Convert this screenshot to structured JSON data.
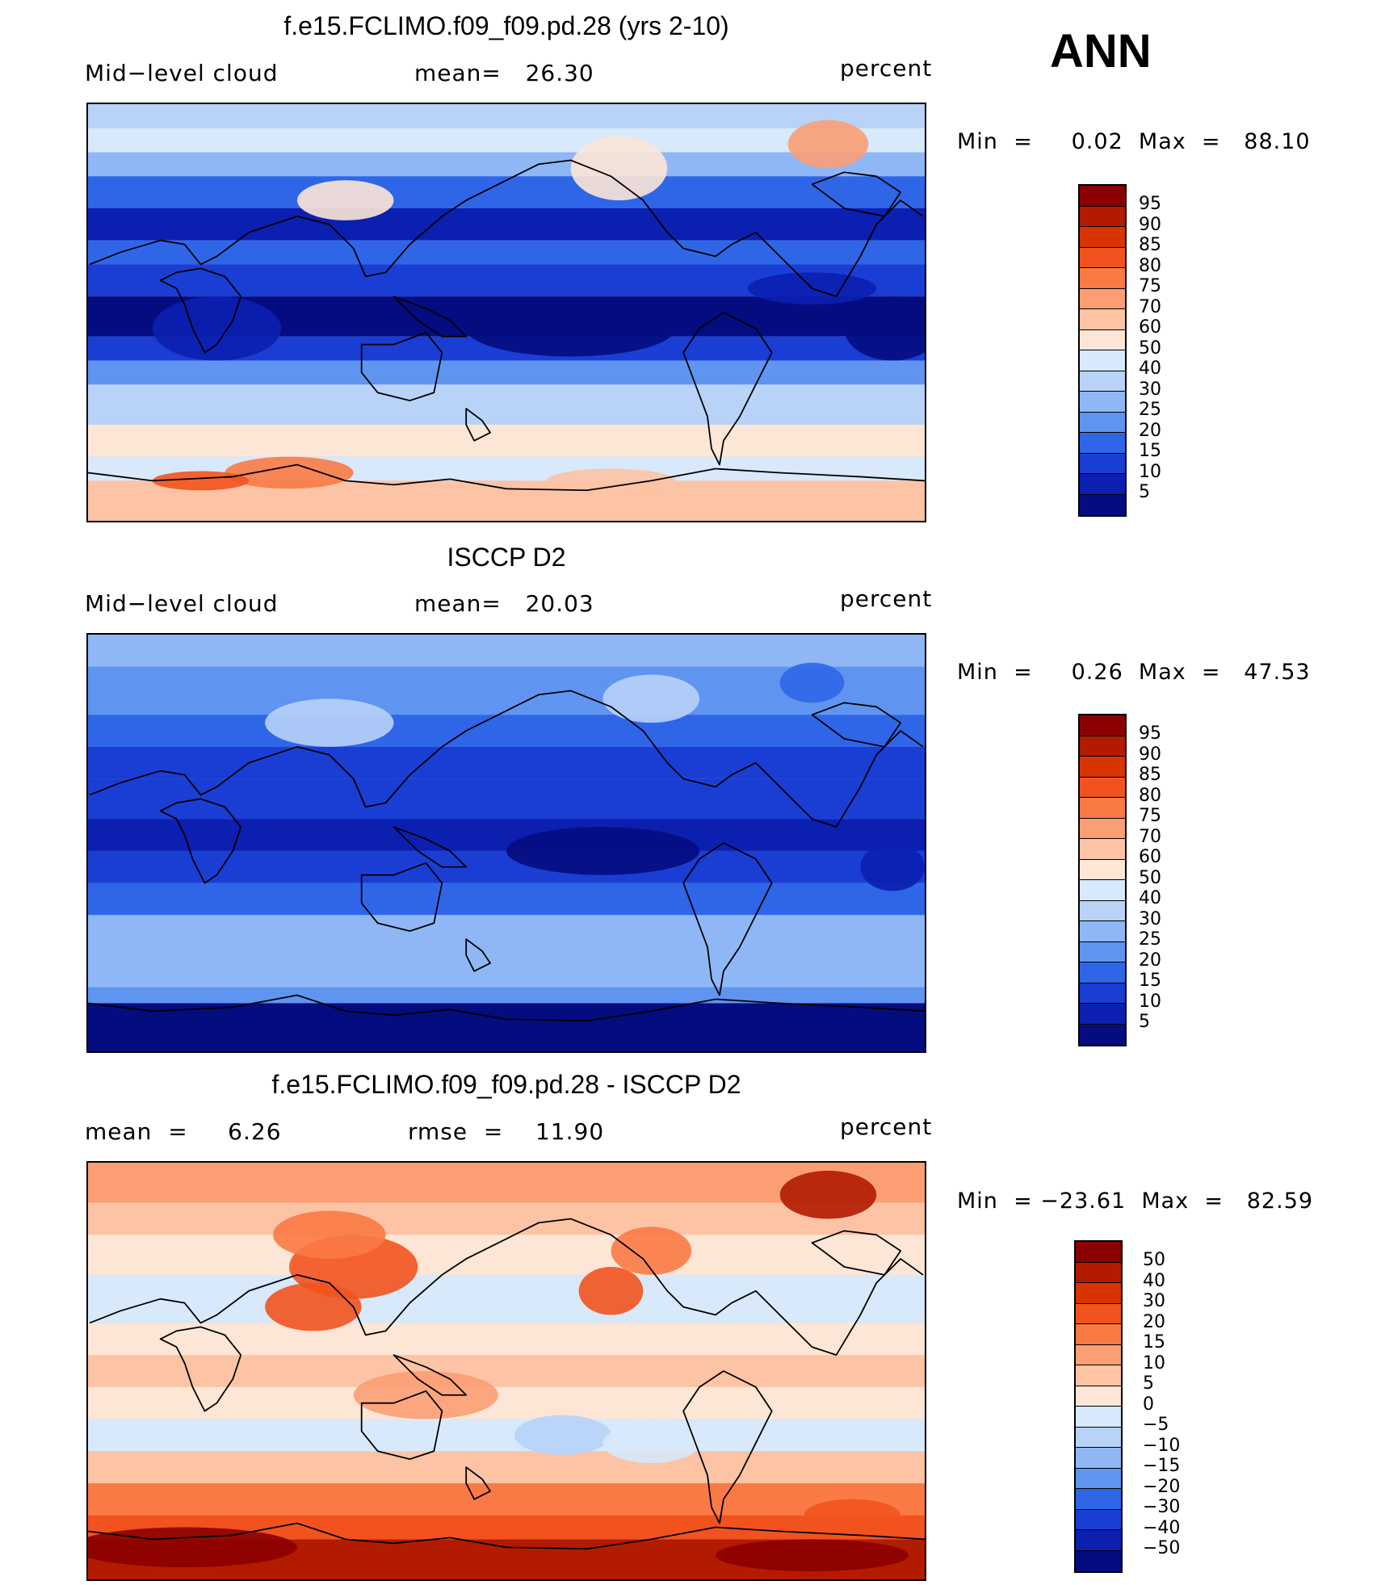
{
  "season": "ANN",
  "panels": [
    {
      "title": "f.e15.FCLIMO.f09_f09.pd.28 (yrs 2-10)",
      "left_label": "Mid−level cloud",
      "mid_label": "mean=   26.30",
      "unit": "percent",
      "min_label": "Min  =",
      "min_value": "0.02",
      "max_label": "Max  =",
      "max_value": "88.10",
      "levels": [
        "95",
        "90",
        "85",
        "80",
        "75",
        "70",
        "60",
        "50",
        "40",
        "30",
        "25",
        "20",
        "15",
        "10",
        "5"
      ],
      "colors": [
        "#8b0000",
        "#b31b00",
        "#d93300",
        "#f2531e",
        "#fa7a45",
        "#fb9e74",
        "#fcc3a5",
        "#fde6d6",
        "#d7e9fa",
        "#b8d2f8",
        "#8fb7f5",
        "#5f95f0",
        "#2f66e8",
        "#1a3ed4",
        "#0b1fb0",
        "#040c80"
      ],
      "color_indices": [
        1,
        2,
        3,
        4,
        5,
        6,
        7,
        8,
        9,
        10,
        11,
        12,
        13,
        14,
        15
      ],
      "fill": "model"
    },
    {
      "title": "ISCCP D2",
      "left_label": "Mid−level cloud",
      "mid_label": "mean=   20.03",
      "unit": "percent",
      "min_label": "Min  =",
      "min_value": "0.26",
      "max_label": "Max  =",
      "max_value": "47.53",
      "levels": [
        "95",
        "90",
        "85",
        "80",
        "75",
        "70",
        "60",
        "50",
        "40",
        "30",
        "25",
        "20",
        "15",
        "10",
        "5"
      ],
      "colors": [
        "#8b0000",
        "#b31b00",
        "#d93300",
        "#f2531e",
        "#fa7a45",
        "#fb9e74",
        "#fcc3a5",
        "#fde6d6",
        "#d7e9fa",
        "#b8d2f8",
        "#8fb7f5",
        "#5f95f0",
        "#2f66e8",
        "#1a3ed4",
        "#0b1fb0",
        "#040c80"
      ],
      "color_indices": [
        1,
        2,
        3,
        4,
        5,
        6,
        7,
        8,
        9,
        10,
        11,
        12,
        13,
        14,
        15
      ],
      "fill": "obs"
    },
    {
      "title": "f.e15.FCLIMO.f09_f09.pd.28 - ISCCP D2",
      "left_label": "mean  =     6.26",
      "mid_label": "rmse  =    11.90",
      "unit": "percent",
      "min_label": "Min  =",
      "min_value": "−23.61",
      "max_label": "Max  =",
      "max_value": "82.59",
      "levels": [
        "50",
        "40",
        "30",
        "20",
        "15",
        "10",
        "5",
        "0",
        "−5",
        "−10",
        "−15",
        "−20",
        "−30",
        "−40",
        "−50"
      ],
      "colors": [
        "#8b0000",
        "#b31b00",
        "#d93300",
        "#f2531e",
        "#fa7a45",
        "#fb9e74",
        "#fcc3a5",
        "#fde6d6",
        "#d7e9fa",
        "#b8d2f8",
        "#8fb7f5",
        "#5f95f0",
        "#2f66e8",
        "#1a3ed4",
        "#0b1fb0",
        "#040c80"
      ],
      "fill": "diff"
    }
  ]
}
